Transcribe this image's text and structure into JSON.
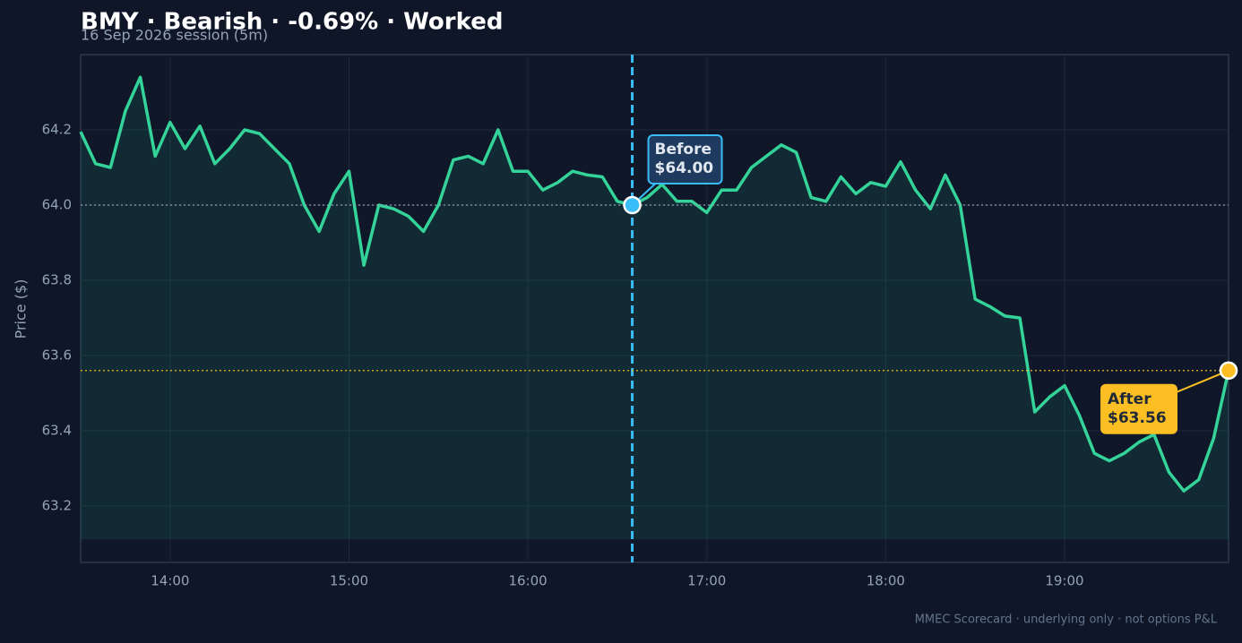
{
  "chart_data": {
    "type": "line",
    "title": "BMY · Bearish · -0.69% · Worked",
    "subtitle": "16 Sep 2026 session (5m)",
    "ylabel": "Price ($)",
    "footer": "MMEC Scorecard · underlying only · not options P&L",
    "x": [
      "13:30",
      "13:35",
      "13:40",
      "13:45",
      "13:50",
      "13:55",
      "14:00",
      "14:05",
      "14:10",
      "14:15",
      "14:20",
      "14:25",
      "14:30",
      "14:35",
      "14:40",
      "14:45",
      "14:50",
      "14:55",
      "15:00",
      "15:05",
      "15:10",
      "15:15",
      "15:20",
      "15:25",
      "15:30",
      "15:35",
      "15:40",
      "15:45",
      "15:50",
      "15:55",
      "16:00",
      "16:05",
      "16:10",
      "16:15",
      "16:20",
      "16:25",
      "16:30",
      "16:35",
      "16:40",
      "16:45",
      "16:50",
      "16:55",
      "17:00",
      "17:05",
      "17:10",
      "17:15",
      "17:20",
      "17:25",
      "17:30",
      "17:35",
      "17:40",
      "17:45",
      "17:50",
      "17:55",
      "18:00",
      "18:05",
      "18:10",
      "18:15",
      "18:20",
      "18:25",
      "18:30",
      "18:35",
      "18:40",
      "18:45",
      "18:50",
      "18:55",
      "19:00",
      "19:05",
      "19:10",
      "19:15",
      "19:20",
      "19:25",
      "19:30",
      "19:35",
      "19:40",
      "19:45",
      "19:50",
      "19:55"
    ],
    "series": [
      {
        "name": "BMY",
        "color": "#34d399",
        "values": [
          64.195,
          64.11,
          64.1,
          64.25,
          64.34,
          64.13,
          64.22,
          64.15,
          64.21,
          64.11,
          64.15,
          64.2,
          64.19,
          64.15,
          64.11,
          64.0,
          63.93,
          64.03,
          64.09,
          63.84,
          64.0,
          63.99,
          63.97,
          63.93,
          64.0,
          64.12,
          64.13,
          64.11,
          64.2,
          64.09,
          64.09,
          64.04,
          64.06,
          64.09,
          64.08,
          64.075,
          64.01,
          64.0,
          64.02,
          64.055,
          64.01,
          64.01,
          63.98,
          64.04,
          64.04,
          64.1,
          64.13,
          64.16,
          64.14,
          64.02,
          64.01,
          64.075,
          64.03,
          64.06,
          64.05,
          64.115,
          64.04,
          63.99,
          64.08,
          64.0,
          63.75,
          63.73,
          63.705,
          63.7,
          63.45,
          63.49,
          63.52,
          63.44,
          63.34,
          63.32,
          63.34,
          63.37,
          63.39,
          63.29,
          63.24,
          63.27,
          63.38,
          63.56
        ]
      }
    ],
    "xlim": [
      "13:30",
      "19:55"
    ],
    "xticks": [
      "14:00",
      "15:00",
      "16:00",
      "17:00",
      "18:00",
      "19:00"
    ],
    "ylim": [
      63.05,
      64.4
    ],
    "yticks": [
      63.2,
      63.4,
      63.6,
      63.8,
      {
        "value": 64,
        "label": "64.0"
      },
      64.2
    ],
    "grid": true,
    "annotations": [
      {
        "label": "Before",
        "x": "16:35",
        "value": 64.0,
        "value_label": "$64.00",
        "color": "#38bdf8"
      },
      {
        "label": "After",
        "x": "19:55",
        "value": 63.56,
        "value_label": "$63.56",
        "color": "#fbbf24"
      }
    ]
  }
}
